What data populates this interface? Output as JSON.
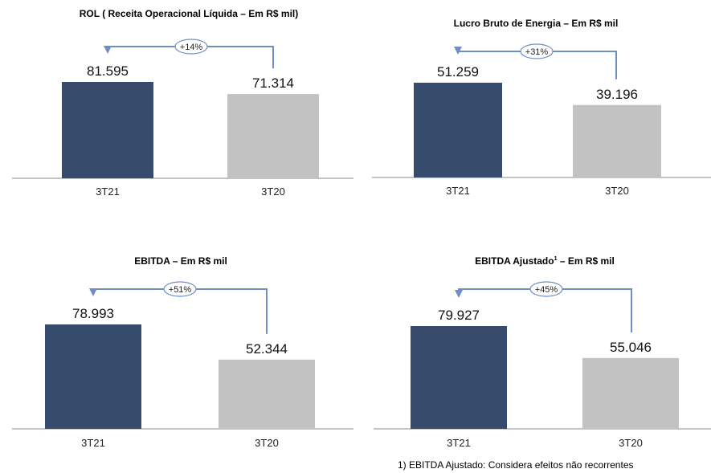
{
  "chart_data": [
    {
      "type": "bar",
      "title": "ROL ( Receita Operacional Líquida – Em R$ mil)",
      "title_sup": "",
      "categories": [
        "3T21",
        "3T20"
      ],
      "values": [
        81595,
        71314
      ],
      "value_labels": [
        "81.595",
        "71.314"
      ],
      "colors": [
        "#374c6d",
        "#c2c2c2"
      ],
      "change_label": "+14%",
      "ylim": [
        0,
        85000
      ]
    },
    {
      "type": "bar",
      "title": "Lucro Bruto de Energia – Em R$ mil",
      "title_sup": "",
      "categories": [
        "3T21",
        "3T20"
      ],
      "values": [
        51259,
        39196
      ],
      "value_labels": [
        "51.259",
        "39.196"
      ],
      "colors": [
        "#374c6d",
        "#c2c2c2"
      ],
      "change_label": "+31%",
      "ylim": [
        0,
        55000
      ]
    },
    {
      "type": "bar",
      "title": "EBITDA – Em R$ mil",
      "title_sup": "",
      "categories": [
        "3T21",
        "3T20"
      ],
      "values": [
        78993,
        52344
      ],
      "value_labels": [
        "78.993",
        "52.344"
      ],
      "colors": [
        "#374c6d",
        "#c2c2c2"
      ],
      "change_label": "+51%",
      "ylim": [
        0,
        82000
      ]
    },
    {
      "type": "bar",
      "title": "EBITDA Ajustado",
      "title_sup": "1",
      "title_suffix": " – Em R$ mil",
      "categories": [
        "3T21",
        "3T20"
      ],
      "values": [
        79927,
        55046
      ],
      "value_labels": [
        "79.927",
        "55.046"
      ],
      "colors": [
        "#374c6d",
        "#c2c2c2"
      ],
      "change_label": "+45%",
      "ylim": [
        0,
        82000
      ]
    }
  ],
  "footnote": "1) EBITDA Ajustado: Considera efeitos não recorrentes",
  "accent_arrow_color": "#6f8fc4"
}
